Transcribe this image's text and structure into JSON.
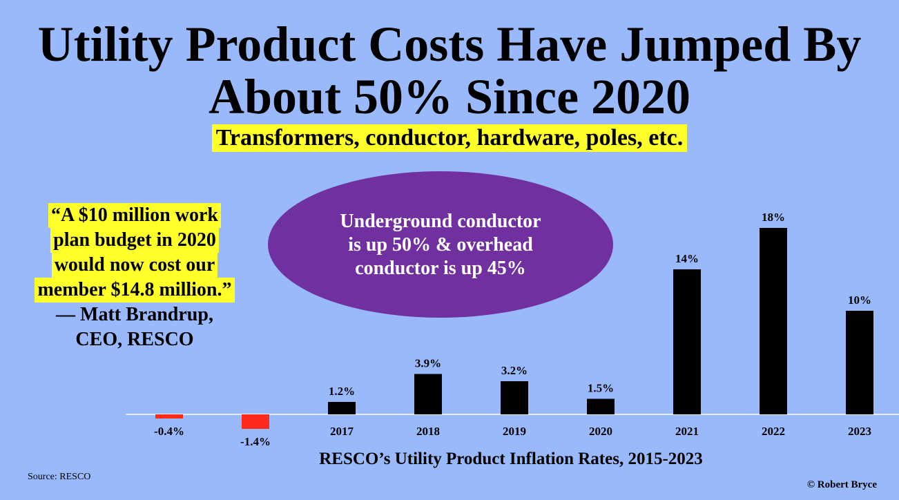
{
  "title_line1": "Utility Product Costs Have Jumped By",
  "title_line2": "About 50% Since 2020",
  "subtitle": "Transformers, conductor, hardware, poles, etc.",
  "quote": {
    "line1": "“A $10 million work",
    "line2": "plan budget in 2020",
    "line3": "would now cost our",
    "line4": "member $14.8 million.”",
    "attribution1": "— Matt Brandrup,",
    "attribution2": "CEO, RESCO"
  },
  "callout": {
    "line1": "Underground conductor",
    "line2": "is up 50% & overhead",
    "line3": "conductor is up 45%",
    "color": "#7030a0"
  },
  "source": "Source: RESCO",
  "credit": "© Robert Bryce",
  "chart_data": {
    "type": "bar",
    "title": "",
    "xlabel": "RESCO’s Utility Product Inflation Rates, 2015-2023",
    "ylabel": "",
    "grid": false,
    "categories": [
      "",
      "",
      "2017",
      "2018",
      "2019",
      "2020",
      "2021",
      "2022",
      "2023"
    ],
    "values": [
      -0.4,
      -1.4,
      1.2,
      3.9,
      3.2,
      1.5,
      14,
      18,
      10
    ],
    "data_labels": [
      "-0.4%",
      "-1.4%",
      "1.2%",
      "3.9%",
      "3.2%",
      "1.5%",
      "14%",
      "18%",
      "10%"
    ],
    "colors": {
      "positive": "#000000",
      "negative": "#ff2a1a",
      "axis": "#ffffff"
    }
  }
}
